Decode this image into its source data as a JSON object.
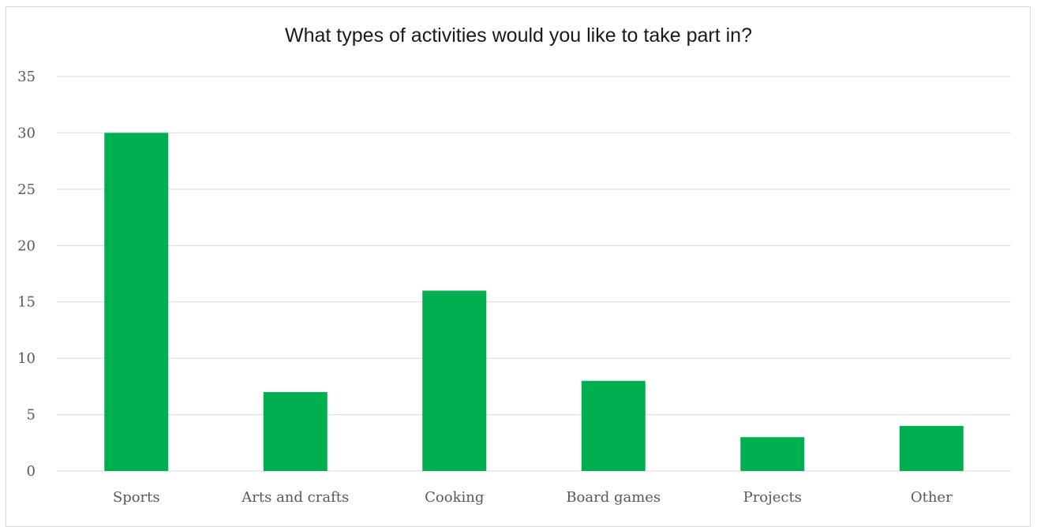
{
  "chart_data": {
    "type": "bar",
    "title": "What types of activities would you like to take part in?",
    "categories": [
      "Sports",
      "Arts and crafts",
      "Cooking",
      "Board games",
      "Projects",
      "Other"
    ],
    "values": [
      30,
      7,
      16,
      8,
      3,
      4
    ],
    "yticks": [
      "0",
      "5",
      "10",
      "15",
      "20",
      "25",
      "30",
      "35"
    ],
    "ylim": [
      0,
      35
    ],
    "xlabel": "",
    "ylabel": "",
    "grid": true,
    "legend": "none",
    "bar_color": "#00b050",
    "grid_color": "#d9d9d9"
  }
}
